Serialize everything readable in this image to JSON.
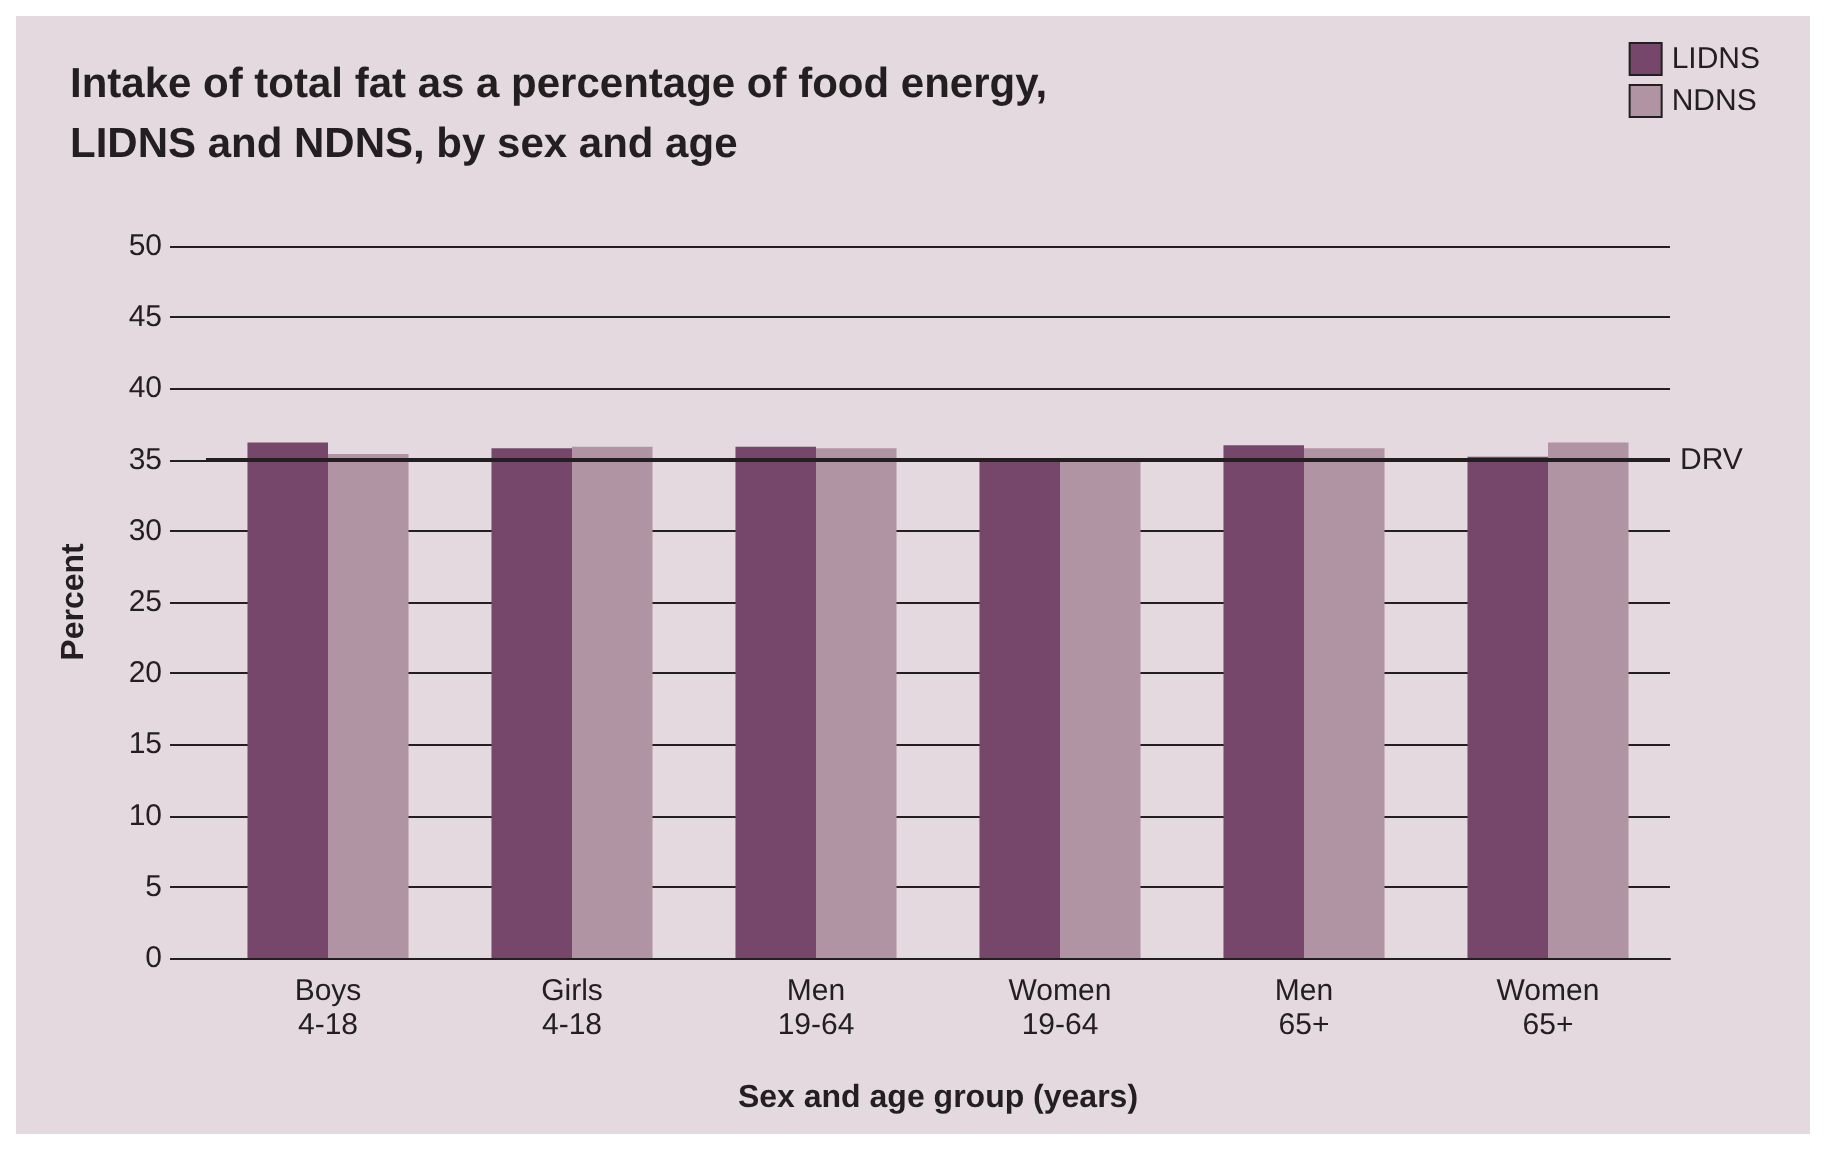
{
  "chart_data": {
    "type": "bar",
    "title": "Intake of total fat as a percentage of food energy,\nLIDNS and NDNS, by sex and age",
    "xlabel": "Sex and age group (years)",
    "ylabel": "Percent",
    "categories": [
      "Boys\n4-18",
      "Girls\n4-18",
      "Men\n19-64",
      "Women\n19-64",
      "Men\n65+",
      "Women\n65+"
    ],
    "series": [
      {
        "name": "LIDNS",
        "color": "#76476b",
        "values": [
          36.2,
          35.8,
          35.9,
          34.9,
          36.0,
          35.2
        ]
      },
      {
        "name": "NDNS",
        "color": "#b194a3",
        "values": [
          35.4,
          35.9,
          35.8,
          34.9,
          35.8,
          36.2
        ]
      }
    ],
    "ylim": [
      0,
      50
    ],
    "yticks": [
      0,
      5,
      10,
      15,
      20,
      25,
      30,
      35,
      40,
      45,
      50
    ],
    "grid": "y",
    "legend": "top right",
    "ref_lines": [
      {
        "axis": "y",
        "value": 35,
        "label": "DRV",
        "color": "#231f20"
      }
    ]
  }
}
